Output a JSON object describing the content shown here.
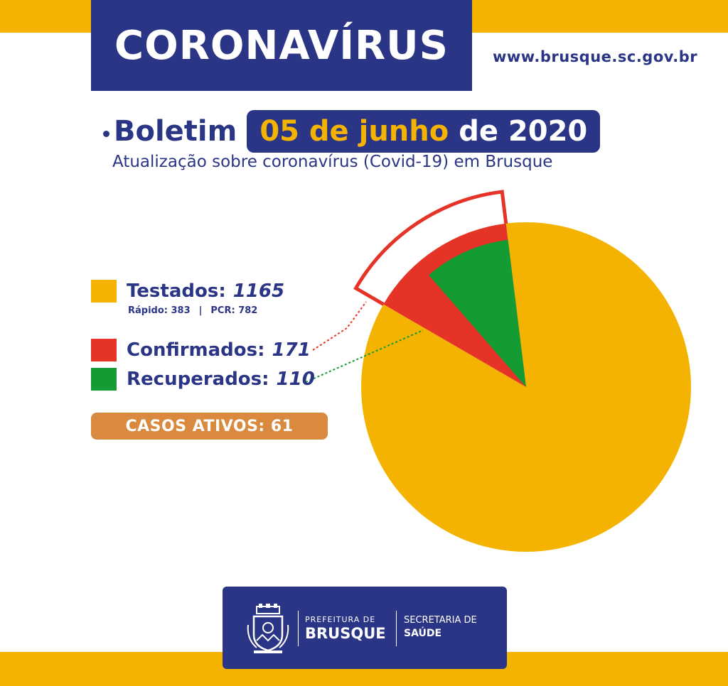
{
  "header": {
    "title": "CORONAVÍRUS",
    "website": "www.brusque.sc.gov.br"
  },
  "bulletin": {
    "label": "Boletim",
    "date_day": "05 de junho",
    "date_year": "de 2020",
    "subtitle": "Atualização sobre coronavírus (Covid-19) em Brusque"
  },
  "legend": {
    "tested": {
      "label": "Testados:",
      "value": "1165",
      "color": "#f5b301"
    },
    "tested_detail": {
      "rapid": "Rápido: 383",
      "separator": "|",
      "pcr": "PCR: 782"
    },
    "confirmed": {
      "label": "Confirmados:",
      "value": "171",
      "color": "#e53427"
    },
    "recovered": {
      "label": "Recuperados:",
      "value": "110",
      "color": "#149b34"
    }
  },
  "active_cases": {
    "text": "CASOS ATIVOS: 61",
    "color": "#d98a3f"
  },
  "colors": {
    "navy": "#2b3585",
    "yellow": "#f5b301",
    "red": "#e53427",
    "green": "#149b34",
    "orange": "#d98a3f"
  },
  "footer": {
    "prefeitura_small": "PREFEITURA DE",
    "prefeitura_big": "BRUSQUE",
    "secretaria_1": "SECRETARIA DE",
    "secretaria_2": "SAÚDE"
  },
  "chart_data": {
    "type": "pie",
    "title": "",
    "total": 1165,
    "slices": [
      {
        "name": "Testados",
        "value": 1165,
        "color": "#f5b301"
      },
      {
        "name": "Confirmados",
        "value": 171,
        "color": "#e53427"
      },
      {
        "name": "Recuperados",
        "value": 110,
        "color": "#149b34"
      }
    ]
  }
}
